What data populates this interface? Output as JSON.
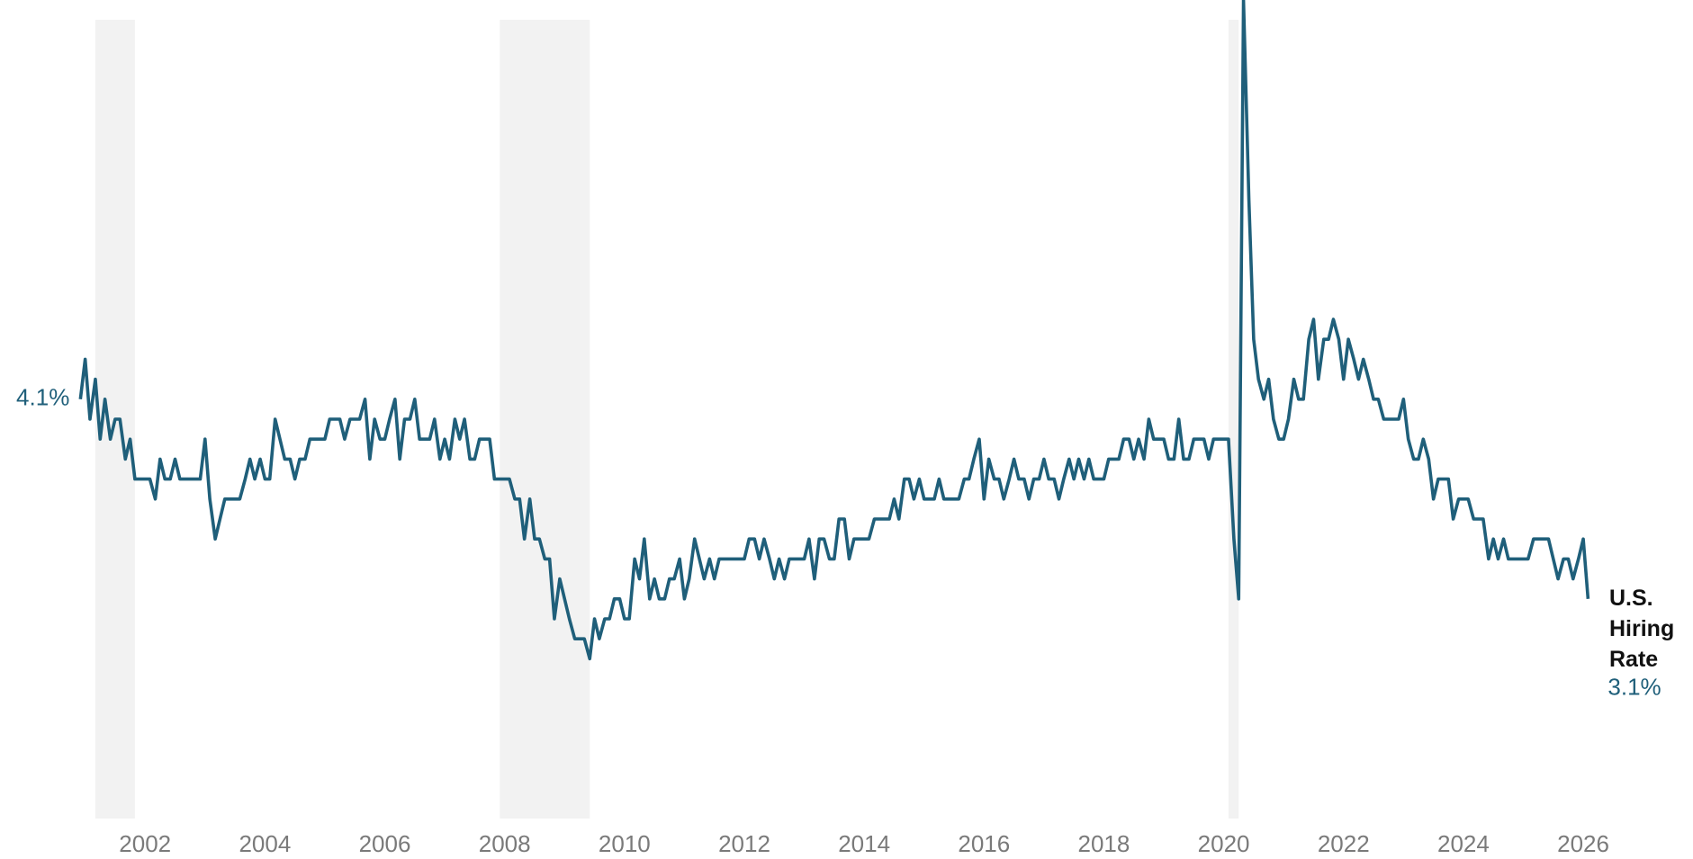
{
  "chart_data": {
    "type": "line",
    "x": [
      2000.92,
      2001,
      2001.08,
      2001.17,
      2001.25,
      2001.33,
      2001.42,
      2001.5,
      2001.58,
      2001.67,
      2001.75,
      2001.83,
      2001.92,
      2002,
      2002.08,
      2002.17,
      2002.25,
      2002.33,
      2002.42,
      2002.5,
      2002.58,
      2002.67,
      2002.75,
      2002.83,
      2002.92,
      2003,
      2003.08,
      2003.17,
      2003.25,
      2003.33,
      2003.42,
      2003.5,
      2003.58,
      2003.67,
      2003.75,
      2003.83,
      2003.92,
      2004,
      2004.08,
      2004.17,
      2004.25,
      2004.33,
      2004.42,
      2004.5,
      2004.58,
      2004.67,
      2004.75,
      2004.83,
      2004.92,
      2005,
      2005.08,
      2005.17,
      2005.25,
      2005.33,
      2005.42,
      2005.5,
      2005.58,
      2005.67,
      2005.75,
      2005.83,
      2005.92,
      2006,
      2006.08,
      2006.17,
      2006.25,
      2006.33,
      2006.42,
      2006.5,
      2006.58,
      2006.67,
      2006.75,
      2006.83,
      2006.92,
      2007,
      2007.08,
      2007.17,
      2007.25,
      2007.33,
      2007.42,
      2007.5,
      2007.58,
      2007.67,
      2007.75,
      2007.83,
      2007.92,
      2008,
      2008.08,
      2008.17,
      2008.25,
      2008.33,
      2008.42,
      2008.5,
      2008.58,
      2008.67,
      2008.75,
      2008.83,
      2008.92,
      2009,
      2009.08,
      2009.17,
      2009.25,
      2009.33,
      2009.42,
      2009.5,
      2009.58,
      2009.67,
      2009.75,
      2009.83,
      2009.92,
      2010,
      2010.08,
      2010.17,
      2010.25,
      2010.33,
      2010.42,
      2010.5,
      2010.58,
      2010.67,
      2010.75,
      2010.83,
      2010.92,
      2011,
      2011.08,
      2011.17,
      2011.25,
      2011.33,
      2011.42,
      2011.5,
      2011.58,
      2011.67,
      2011.75,
      2011.83,
      2011.92,
      2012,
      2012.08,
      2012.17,
      2012.25,
      2012.33,
      2012.42,
      2012.5,
      2012.58,
      2012.67,
      2012.75,
      2012.83,
      2012.92,
      2013,
      2013.08,
      2013.17,
      2013.25,
      2013.33,
      2013.42,
      2013.5,
      2013.58,
      2013.67,
      2013.75,
      2013.83,
      2013.92,
      2014,
      2014.08,
      2014.17,
      2014.25,
      2014.33,
      2014.42,
      2014.5,
      2014.58,
      2014.67,
      2014.75,
      2014.83,
      2014.92,
      2015,
      2015.08,
      2015.17,
      2015.25,
      2015.33,
      2015.42,
      2015.5,
      2015.58,
      2015.67,
      2015.75,
      2015.83,
      2015.92,
      2016,
      2016.08,
      2016.17,
      2016.25,
      2016.33,
      2016.42,
      2016.5,
      2016.58,
      2016.67,
      2016.75,
      2016.83,
      2016.92,
      2017,
      2017.08,
      2017.17,
      2017.25,
      2017.33,
      2017.42,
      2017.5,
      2017.58,
      2017.67,
      2017.75,
      2017.83,
      2017.92,
      2018,
      2018.08,
      2018.17,
      2018.25,
      2018.33,
      2018.42,
      2018.5,
      2018.58,
      2018.67,
      2018.75,
      2018.83,
      2018.92,
      2019,
      2019.08,
      2019.17,
      2019.25,
      2019.33,
      2019.42,
      2019.5,
      2019.58,
      2019.67,
      2019.75,
      2019.83,
      2019.92,
      2020,
      2020.08,
      2020.17,
      2020.25,
      2020.33,
      2020.42,
      2020.5,
      2020.58,
      2020.67,
      2020.75,
      2020.83,
      2020.92,
      2021,
      2021.08,
      2021.17,
      2021.25,
      2021.33,
      2021.42,
      2021.5,
      2021.58,
      2021.67,
      2021.75,
      2021.83,
      2021.92,
      2022,
      2022.08,
      2022.17,
      2022.25,
      2022.33,
      2022.42,
      2022.5,
      2022.58,
      2022.67,
      2022.75,
      2022.83,
      2022.92,
      2023,
      2023.08,
      2023.17,
      2023.25,
      2023.33,
      2023.42,
      2023.5,
      2023.58,
      2023.67,
      2023.75,
      2023.83,
      2023.92,
      2024,
      2024.08,
      2024.17,
      2024.25,
      2024.33,
      2024.42,
      2024.5,
      2024.58,
      2024.67,
      2024.75,
      2024.83,
      2024.92,
      2025,
      2025.08,
      2025.17,
      2025.25,
      2025.33,
      2025.42,
      2025.5,
      2025.58,
      2025.67,
      2025.75,
      2025.83,
      2025.92,
      2026,
      2026.08
    ],
    "series": [
      {
        "name": "U.S. Hiring Rate",
        "color": "#1f5f7a",
        "values": [
          4.1,
          4.3,
          4.0,
          4.2,
          3.9,
          4.1,
          3.9,
          4.0,
          4.0,
          3.8,
          3.9,
          3.7,
          3.7,
          3.7,
          3.7,
          3.6,
          3.8,
          3.7,
          3.7,
          3.8,
          3.7,
          3.7,
          3.7,
          3.7,
          3.7,
          3.9,
          3.6,
          3.4,
          3.5,
          3.6,
          3.6,
          3.6,
          3.6,
          3.7,
          3.8,
          3.7,
          3.8,
          3.7,
          3.7,
          4.0,
          3.9,
          3.8,
          3.8,
          3.7,
          3.8,
          3.8,
          3.9,
          3.9,
          3.9,
          3.9,
          4.0,
          4.0,
          4.0,
          3.9,
          4.0,
          4.0,
          4.0,
          4.1,
          3.8,
          4.0,
          3.9,
          3.9,
          4.0,
          4.1,
          3.8,
          4.0,
          4.0,
          4.1,
          3.9,
          3.9,
          3.9,
          4.0,
          3.8,
          3.9,
          3.8,
          4.0,
          3.9,
          4.0,
          3.8,
          3.8,
          3.9,
          3.9,
          3.9,
          3.7,
          3.7,
          3.7,
          3.7,
          3.6,
          3.6,
          3.4,
          3.6,
          3.4,
          3.4,
          3.3,
          3.3,
          3.0,
          3.2,
          3.1,
          3.0,
          2.9,
          2.9,
          2.9,
          2.8,
          3.0,
          2.9,
          3.0,
          3.0,
          3.1,
          3.1,
          3.0,
          3.0,
          3.3,
          3.2,
          3.4,
          3.1,
          3.2,
          3.1,
          3.1,
          3.2,
          3.2,
          3.3,
          3.1,
          3.2,
          3.4,
          3.3,
          3.2,
          3.3,
          3.2,
          3.3,
          3.3,
          3.3,
          3.3,
          3.3,
          3.3,
          3.4,
          3.4,
          3.3,
          3.4,
          3.3,
          3.2,
          3.3,
          3.2,
          3.3,
          3.3,
          3.3,
          3.3,
          3.4,
          3.2,
          3.4,
          3.4,
          3.3,
          3.3,
          3.5,
          3.5,
          3.3,
          3.4,
          3.4,
          3.4,
          3.4,
          3.5,
          3.5,
          3.5,
          3.5,
          3.6,
          3.5,
          3.7,
          3.7,
          3.6,
          3.7,
          3.6,
          3.6,
          3.6,
          3.7,
          3.6,
          3.6,
          3.6,
          3.6,
          3.7,
          3.7,
          3.8,
          3.9,
          3.6,
          3.8,
          3.7,
          3.7,
          3.6,
          3.7,
          3.8,
          3.7,
          3.7,
          3.6,
          3.7,
          3.7,
          3.8,
          3.7,
          3.7,
          3.6,
          3.7,
          3.8,
          3.7,
          3.8,
          3.7,
          3.8,
          3.7,
          3.7,
          3.7,
          3.8,
          3.8,
          3.8,
          3.9,
          3.9,
          3.8,
          3.9,
          3.8,
          4.0,
          3.9,
          3.9,
          3.9,
          3.8,
          3.8,
          4.0,
          3.8,
          3.8,
          3.9,
          3.9,
          3.9,
          3.8,
          3.9,
          3.9,
          3.9,
          3.9,
          3.4,
          3.1,
          6.1,
          5.1,
          4.4,
          4.2,
          4.1,
          4.2,
          4.0,
          3.9,
          3.9,
          4.0,
          4.2,
          4.1,
          4.1,
          4.4,
          4.5,
          4.2,
          4.4,
          4.4,
          4.5,
          4.4,
          4.2,
          4.4,
          4.3,
          4.2,
          4.3,
          4.2,
          4.1,
          4.1,
          4.0,
          4.0,
          4.0,
          4.0,
          4.1,
          3.9,
          3.8,
          3.8,
          3.9,
          3.8,
          3.6,
          3.7,
          3.7,
          3.7,
          3.5,
          3.6,
          3.6,
          3.6,
          3.5,
          3.5,
          3.5,
          3.3,
          3.4,
          3.3,
          3.4,
          3.3,
          3.3,
          3.3,
          3.3,
          3.3,
          3.4,
          3.4,
          3.4,
          3.4,
          3.3,
          3.2,
          3.3,
          3.3,
          3.2,
          3.3,
          3.4,
          3.1
        ]
      }
    ],
    "xlim": [
      2000.75,
      2026.75
    ],
    "xticks": [
      2002,
      2004,
      2006,
      2008,
      2010,
      2012,
      2014,
      2016,
      2018,
      2020,
      2022,
      2024,
      2026
    ],
    "ylim": [
      2.0,
      6.0
    ],
    "grid": false,
    "recessions": [
      [
        2001.17,
        2001.83
      ],
      [
        2007.92,
        2009.42
      ],
      [
        2020.08,
        2020.25
      ]
    ],
    "recession_color": "#f2f2f2",
    "annotations": [
      {
        "text": "4.1%",
        "x": 2000.92,
        "y": 4.1
      },
      {
        "text": "3.1%",
        "x": 2026.08,
        "y": 3.1
      }
    ]
  }
}
